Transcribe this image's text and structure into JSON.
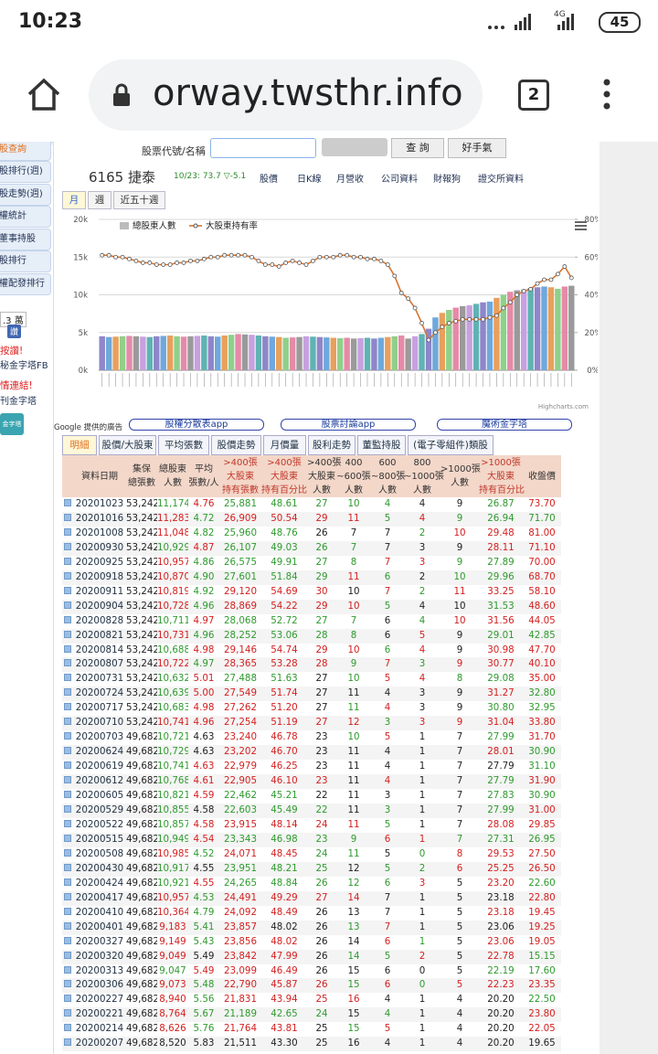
{
  "status_bar": {
    "time": "10:23",
    "network": "4G",
    "battery": "45"
  },
  "browser": {
    "url": "orway.twsthr.info",
    "tab_count": "2"
  },
  "sidebar": {
    "items": [
      "股查詢",
      "股排行(週)",
      "股走勢(週)",
      "權統計",
      "董事持股",
      "股排行",
      "權配發排行"
    ],
    "like_count": ".3 萬",
    "like_button": "讚",
    "like_prompt": "按讚!",
    "fb_link": "秘金字塔FB",
    "friend_links": "情連結!",
    "friend_site": "刊金字塔",
    "badge": "金字塔"
  },
  "search": {
    "label": "股票代號/名稱",
    "query_button": "查 詢",
    "lucky_button": "好手氣"
  },
  "stock": {
    "title": "6165 捷泰",
    "quote": "10/23: 73.7 ▽-5.1",
    "links": [
      "股價",
      "日K線",
      "月營收",
      "公司資料",
      "財報狗",
      "證交所資料"
    ]
  },
  "chart_tabs": [
    "月",
    "週",
    "近五十週"
  ],
  "chart": {
    "type": "bar-line",
    "credit": "Highcharts.com",
    "ylim": [
      0,
      20000
    ],
    "yticks": [
      {
        "value": 0,
        "label": "0k"
      },
      {
        "value": 5000,
        "label": "5k"
      },
      {
        "value": 10000,
        "label": "10k"
      },
      {
        "value": 15000,
        "label": "15k"
      },
      {
        "value": 20000,
        "label": "20k"
      }
    ],
    "y2lim": [
      0,
      80
    ],
    "y2ticks": [
      {
        "value": 0,
        "label": "0%"
      },
      {
        "value": 20,
        "label": "20%"
      },
      {
        "value": 40,
        "label": "40%"
      },
      {
        "value": 60,
        "label": "60%"
      },
      {
        "value": 80,
        "label": "80%"
      }
    ],
    "grid": true,
    "bar_colors": [
      "#8e86c9",
      "#6fa8dc",
      "#e8a05c",
      "#8fd08a",
      "#e58aa8",
      "#9a9a9a",
      "#c7a0e0",
      "#5fb3b3"
    ],
    "series": [
      {
        "name": "總股東人數",
        "type": "bar",
        "color": "#bbbbbb",
        "values": [
          4500,
          4400,
          4450,
          4500,
          4550,
          4500,
          4450,
          4400,
          4500,
          4550,
          4600,
          4500,
          4450,
          4500,
          4550,
          4600,
          4500,
          4450,
          4600,
          4700,
          4800,
          4750,
          4700,
          4600,
          4500,
          4450,
          4400,
          4300,
          4350,
          4400,
          4500,
          4450,
          4400,
          4350,
          4300,
          4250,
          4300,
          4200,
          4250,
          4300,
          4200,
          4300,
          4400,
          4500,
          4600,
          4200,
          4500,
          4800,
          5500,
          7000,
          7600,
          8000,
          8300,
          8500,
          8600,
          8800,
          9000,
          9100,
          9600,
          10000,
          10400,
          10600,
          10700,
          10900,
          11000,
          11100,
          11000,
          10800,
          11100,
          11200
        ]
      },
      {
        "name": "大股東持有率",
        "type": "line",
        "axis": "y2",
        "color": "#d9742e",
        "values": [
          61,
          61,
          60,
          60,
          59,
          58,
          57,
          57,
          56,
          56,
          56,
          57,
          57,
          58,
          58,
          59,
          60,
          60,
          61,
          61,
          61,
          61,
          60,
          58,
          56,
          56,
          55,
          57,
          58,
          57,
          56,
          58,
          60,
          60,
          60,
          61,
          61,
          60,
          60,
          59,
          59,
          58,
          56,
          50,
          41,
          38,
          33,
          25,
          16,
          20,
          23,
          25,
          26,
          27,
          27,
          27,
          27,
          28,
          29,
          33,
          36,
          40,
          42,
          43,
          46,
          48,
          48,
          51,
          55,
          49
        ]
      }
    ]
  },
  "ads": {
    "label": "Google 提供的廣告",
    "links": [
      "股權分散表app",
      "股票討論app",
      "魔術金字塔"
    ]
  },
  "table_tabs": [
    "明細",
    "股價/大股東",
    "平均張數",
    "股價走勢",
    "月價量",
    "股利走勢",
    "董監持股",
    "(電子零組件)類股"
  ],
  "table": {
    "header": [
      [
        "資料日期"
      ],
      [
        "集保",
        "總張數"
      ],
      [
        "總股東",
        "人數"
      ],
      [
        "平均",
        "張數/人"
      ],
      [
        ">400張",
        "大股東",
        "持有張數"
      ],
      [
        ">400張",
        "大股東",
        "持有百分比"
      ],
      [
        ">400張",
        "大股東",
        "人數"
      ],
      [
        "400",
        "~600張",
        "人數"
      ],
      [
        "600",
        "~800張",
        "人數"
      ],
      [
        "800",
        "~1000張",
        "人數"
      ],
      [
        ">1000張",
        "人數"
      ],
      [
        ">1000張",
        "大股東",
        "持有百分比"
      ],
      [
        "收盤價"
      ]
    ],
    "rows": [
      [
        "20201023",
        "53,242",
        "11,174",
        "4.76",
        "25,881",
        "48.61",
        "27",
        "10",
        "4",
        "4",
        "9",
        "26.87",
        "73.70"
      ],
      [
        "20201016",
        "53,242",
        "11,283",
        "4.72",
        "26,909",
        "50.54",
        "29",
        "11",
        "5",
        "4",
        "9",
        "26.94",
        "71.70"
      ],
      [
        "20201008",
        "53,242",
        "11,048",
        "4.82",
        "25,960",
        "48.76",
        "26",
        "7",
        "7",
        "2",
        "10",
        "29.48",
        "81.00"
      ],
      [
        "20200930",
        "53,242",
        "10,929",
        "4.87",
        "26,107",
        "49.03",
        "26",
        "7",
        "7",
        "3",
        "9",
        "28.11",
        "71.10"
      ],
      [
        "20200925",
        "53,242",
        "10,957",
        "4.86",
        "26,575",
        "49.91",
        "27",
        "8",
        "7",
        "3",
        "9",
        "27.89",
        "70.00"
      ],
      [
        "20200918",
        "53,242",
        "10,870",
        "4.90",
        "27,601",
        "51.84",
        "29",
        "11",
        "6",
        "2",
        "10",
        "29.96",
        "68.70"
      ],
      [
        "20200911",
        "53,242",
        "10,819",
        "4.92",
        "29,120",
        "54.69",
        "30",
        "10",
        "7",
        "2",
        "11",
        "33.25",
        "58.10"
      ],
      [
        "20200904",
        "53,242",
        "10,728",
        "4.96",
        "28,869",
        "54.22",
        "29",
        "10",
        "5",
        "4",
        "10",
        "31.53",
        "48.60"
      ],
      [
        "20200828",
        "53,242",
        "10,711",
        "4.97",
        "28,068",
        "52.72",
        "27",
        "7",
        "6",
        "4",
        "10",
        "31.56",
        "44.05"
      ],
      [
        "20200821",
        "53,242",
        "10,731",
        "4.96",
        "28,252",
        "53.06",
        "28",
        "8",
        "6",
        "5",
        "9",
        "29.01",
        "42.85"
      ],
      [
        "20200814",
        "53,242",
        "10,688",
        "4.98",
        "29,146",
        "54.74",
        "29",
        "10",
        "6",
        "4",
        "9",
        "30.98",
        "47.70"
      ],
      [
        "20200807",
        "53,242",
        "10,722",
        "4.97",
        "28,365",
        "53.28",
        "28",
        "9",
        "7",
        "3",
        "9",
        "30.77",
        "40.10"
      ],
      [
        "20200731",
        "53,242",
        "10,632",
        "5.01",
        "27,488",
        "51.63",
        "27",
        "10",
        "5",
        "4",
        "8",
        "29.08",
        "35.00"
      ],
      [
        "20200724",
        "53,242",
        "10,639",
        "5.00",
        "27,549",
        "51.74",
        "27",
        "11",
        "4",
        "3",
        "9",
        "31.27",
        "32.80"
      ],
      [
        "20200717",
        "53,242",
        "10,683",
        "4.98",
        "27,262",
        "51.20",
        "27",
        "11",
        "4",
        "3",
        "9",
        "30.80",
        "32.95"
      ],
      [
        "20200710",
        "53,242",
        "10,741",
        "4.96",
        "27,254",
        "51.19",
        "27",
        "12",
        "3",
        "3",
        "9",
        "31.04",
        "33.80"
      ],
      [
        "20200703",
        "49,682",
        "10,721",
        "4.63",
        "23,240",
        "46.78",
        "23",
        "10",
        "5",
        "1",
        "7",
        "27.99",
        "31.70"
      ],
      [
        "20200624",
        "49,682",
        "10,729",
        "4.63",
        "23,202",
        "46.70",
        "23",
        "11",
        "4",
        "1",
        "7",
        "28.01",
        "30.90"
      ],
      [
        "20200619",
        "49,682",
        "10,741",
        "4.63",
        "22,979",
        "46.25",
        "23",
        "11",
        "4",
        "1",
        "7",
        "27.79",
        "31.10"
      ],
      [
        "20200612",
        "49,682",
        "10,768",
        "4.61",
        "22,905",
        "46.10",
        "23",
        "11",
        "4",
        "1",
        "7",
        "27.79",
        "31.90"
      ],
      [
        "20200605",
        "49,682",
        "10,821",
        "4.59",
        "22,462",
        "45.21",
        "22",
        "11",
        "3",
        "1",
        "7",
        "27.83",
        "30.90"
      ],
      [
        "20200529",
        "49,682",
        "10,855",
        "4.58",
        "22,603",
        "45.49",
        "22",
        "11",
        "3",
        "1",
        "7",
        "27.99",
        "31.00"
      ],
      [
        "20200522",
        "49,682",
        "10,857",
        "4.58",
        "23,915",
        "48.14",
        "24",
        "11",
        "5",
        "1",
        "7",
        "28.08",
        "29.85"
      ],
      [
        "20200515",
        "49,682",
        "10,949",
        "4.54",
        "23,343",
        "46.98",
        "23",
        "9",
        "6",
        "1",
        "7",
        "27.31",
        "26.95"
      ],
      [
        "20200508",
        "49,682",
        "10,985",
        "4.52",
        "24,071",
        "48.45",
        "24",
        "11",
        "5",
        "0",
        "8",
        "29.53",
        "27.50"
      ],
      [
        "20200430",
        "49,682",
        "10,917",
        "4.55",
        "23,951",
        "48.21",
        "25",
        "12",
        "5",
        "2",
        "6",
        "25.25",
        "26.50"
      ],
      [
        "20200424",
        "49,682",
        "10,921",
        "4.55",
        "24,265",
        "48.84",
        "26",
        "12",
        "6",
        "3",
        "5",
        "23.20",
        "22.60"
      ],
      [
        "20200417",
        "49,682",
        "10,957",
        "4.53",
        "24,491",
        "49.29",
        "27",
        "14",
        "7",
        "1",
        "5",
        "23.18",
        "22.80"
      ],
      [
        "20200410",
        "49,682",
        "10,364",
        "4.79",
        "24,092",
        "48.49",
        "26",
        "13",
        "7",
        "1",
        "5",
        "23.18",
        "19.45"
      ],
      [
        "20200401",
        "49,682",
        "9,183",
        "5.41",
        "23,857",
        "48.02",
        "26",
        "13",
        "7",
        "1",
        "5",
        "23.06",
        "19.25"
      ],
      [
        "20200327",
        "49,682",
        "9,149",
        "5.43",
        "23,856",
        "48.02",
        "26",
        "14",
        "6",
        "1",
        "5",
        "23.06",
        "19.05"
      ],
      [
        "20200320",
        "49,682",
        "9,049",
        "5.49",
        "23,842",
        "47.99",
        "26",
        "14",
        "5",
        "2",
        "5",
        "22.78",
        "15.15"
      ],
      [
        "20200313",
        "49,682",
        "9,047",
        "5.49",
        "23,099",
        "46.49",
        "26",
        "15",
        "6",
        "0",
        "5",
        "22.19",
        "17.60"
      ],
      [
        "20200306",
        "49,682",
        "9,073",
        "5.48",
        "22,790",
        "45.87",
        "26",
        "15",
        "6",
        "0",
        "5",
        "22.23",
        "23.35"
      ],
      [
        "20200227",
        "49,682",
        "8,940",
        "5.56",
        "21,831",
        "43.94",
        "25",
        "16",
        "4",
        "1",
        "4",
        "20.20",
        "22.50"
      ],
      [
        "20200221",
        "49,682",
        "8,764",
        "5.67",
        "21,189",
        "42.65",
        "24",
        "15",
        "4",
        "1",
        "4",
        "20.20",
        "23.80"
      ],
      [
        "20200214",
        "49,682",
        "8,626",
        "5.76",
        "21,764",
        "43.81",
        "25",
        "15",
        "5",
        "1",
        "4",
        "20.20",
        "22.05"
      ],
      [
        "20200207",
        "49,682",
        "8,520",
        "5.83",
        "21,511",
        "43.30",
        "25",
        "16",
        "4",
        "1",
        "4",
        "20.20",
        "19.65"
      ]
    ]
  }
}
